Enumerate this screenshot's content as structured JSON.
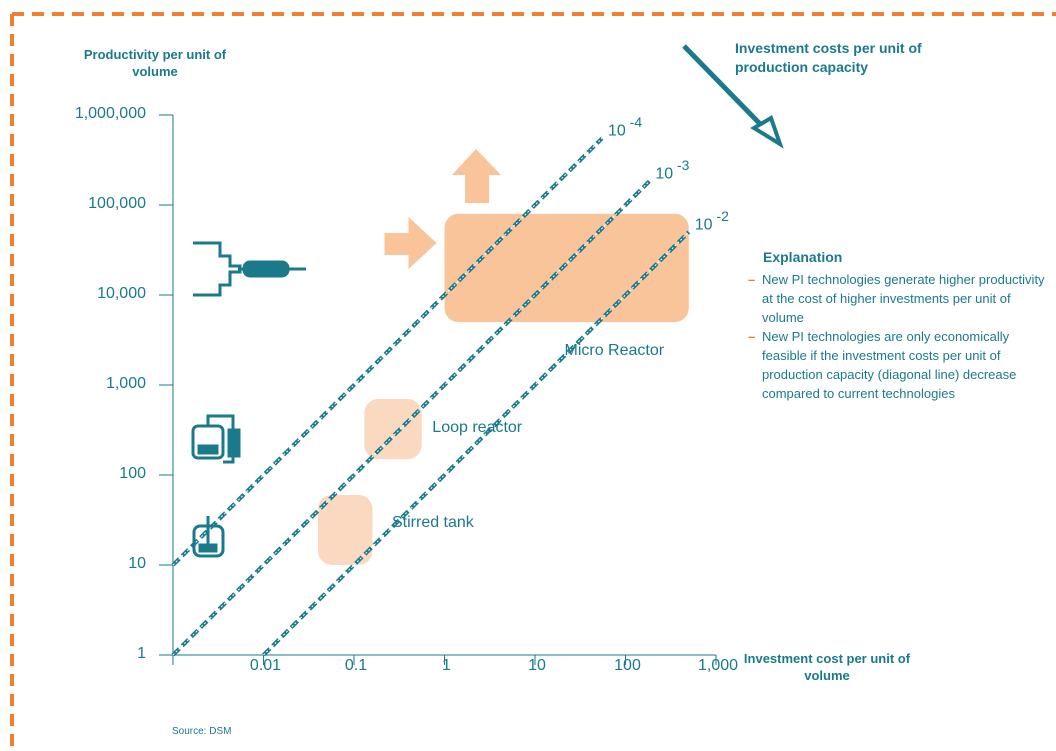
{
  "colors": {
    "frame": "#f08030",
    "teal": "#1a7a8c",
    "region_strong": "#f9c49a",
    "region_light": "#fbd9c0"
  },
  "arrow_label": "Investment costs per unit of production capacity",
  "source": "Source: DSM",
  "explanation": {
    "title": "Explanation",
    "items": [
      "New PI technologies generate higher productivity at the cost of higher investments per unit of volume",
      "New PI technologies are only economically feasible if the investment costs per unit of production capacity (diagonal line) decrease compared to current technologies"
    ]
  },
  "icons": [
    "micro-reactor-icon",
    "loop-reactor-icon",
    "stirred-tank-icon"
  ],
  "chart_data": {
    "type": "scatter",
    "xlabel": "Investment cost per unit of volume",
    "ylabel": "Productivity per unit of volume",
    "x_scale": "log",
    "y_scale": "log",
    "xlim": [
      0.001,
      1000
    ],
    "ylim": [
      1,
      1000000
    ],
    "x_ticks": [
      "0.01",
      "0.1",
      "1",
      "10",
      "100",
      "1,000"
    ],
    "x_tick_values": [
      0.01,
      0.1,
      1,
      10,
      100,
      1000
    ],
    "y_ticks": [
      "1",
      "10",
      "100",
      "1,000",
      "10,000",
      "100,000",
      "1,000,000"
    ],
    "y_tick_values": [
      1,
      10,
      100,
      1000,
      10000,
      100000,
      1000000
    ],
    "diagonal_lines": [
      {
        "label_base": "10",
        "label_exp": "-4",
        "cost_ratio": 0.0001
      },
      {
        "label_base": "10",
        "label_exp": "-3",
        "cost_ratio": 0.001
      },
      {
        "label_base": "10",
        "label_exp": "-2",
        "cost_ratio": 0.01
      }
    ],
    "regions": [
      {
        "name": "Micro Reactor",
        "x_range": [
          1,
          500
        ],
        "y_range": [
          5000,
          80000
        ],
        "shade": "strong"
      },
      {
        "name": "Loop reactor",
        "x_range": [
          0.13,
          0.56
        ],
        "y_range": [
          150,
          700
        ],
        "shade": "light"
      },
      {
        "name": "Stirred tank",
        "x_range": [
          0.04,
          0.16
        ],
        "y_range": [
          10,
          60
        ],
        "shade": "light"
      }
    ]
  }
}
